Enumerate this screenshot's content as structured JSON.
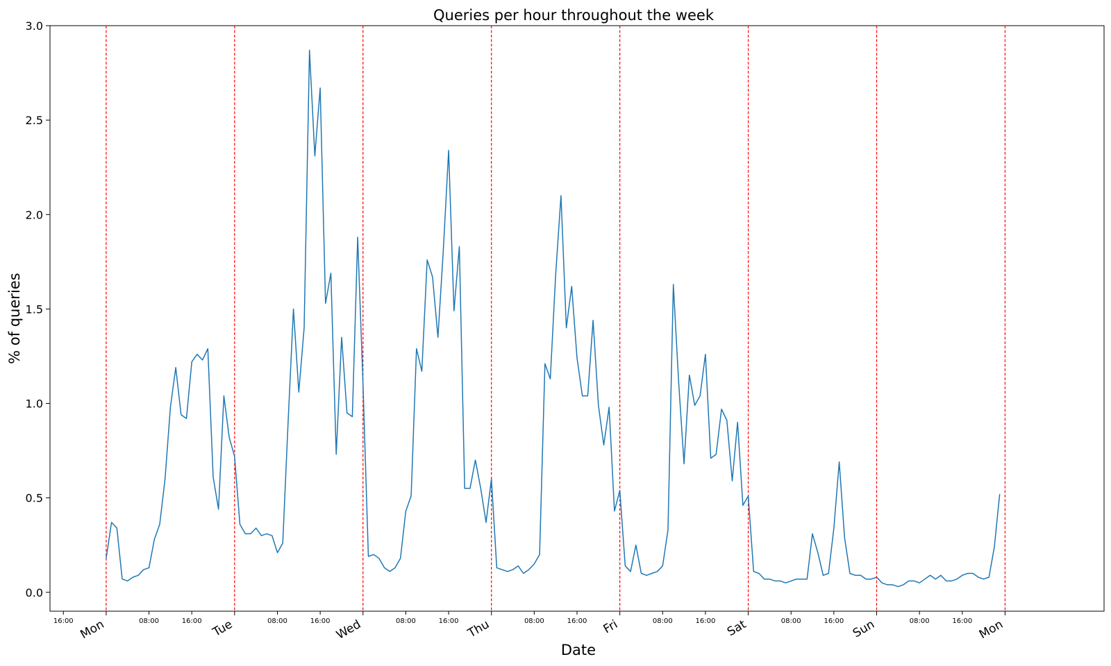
{
  "chart_data": {
    "type": "line",
    "title": "Queries per hour throughout the week",
    "xlabel": "Date",
    "ylabel": "% of queries",
    "ylim": [
      -0.1,
      3.0
    ],
    "y_ticks": [
      0.0,
      0.5,
      1.0,
      1.5,
      2.0,
      2.5,
      3.0
    ],
    "y_tick_labels": [
      "0.0",
      "0.5",
      "1.0",
      "1.5",
      "2.0",
      "2.5",
      "3.0"
    ],
    "x_axis": {
      "unit": "hours since Mon 00:00",
      "range": [
        -10.5,
        186.5
      ],
      "minor_ticks": [
        {
          "x": -8,
          "label": "16:00"
        },
        {
          "x": 8,
          "label": "08:00"
        },
        {
          "x": 16,
          "label": "16:00"
        },
        {
          "x": 32,
          "label": "08:00"
        },
        {
          "x": 40,
          "label": "16:00"
        },
        {
          "x": 56,
          "label": "08:00"
        },
        {
          "x": 64,
          "label": "16:00"
        },
        {
          "x": 80,
          "label": "08:00"
        },
        {
          "x": 88,
          "label": "16:00"
        },
        {
          "x": 104,
          "label": "08:00"
        },
        {
          "x": 112,
          "label": "16:00"
        },
        {
          "x": 128,
          "label": "08:00"
        },
        {
          "x": 136,
          "label": "16:00"
        },
        {
          "x": 152,
          "label": "08:00"
        },
        {
          "x": 160,
          "label": "16:00"
        }
      ],
      "day_ticks": [
        {
          "x": 0,
          "label": "Mon"
        },
        {
          "x": 24,
          "label": "Tue"
        },
        {
          "x": 48,
          "label": "Wed"
        },
        {
          "x": 72,
          "label": "Thu"
        },
        {
          "x": 96,
          "label": "Fri"
        },
        {
          "x": 120,
          "label": "Sat"
        },
        {
          "x": 144,
          "label": "Sun"
        },
        {
          "x": 168,
          "label": "Mon"
        }
      ]
    },
    "day_boundaries": [
      0,
      24,
      48,
      72,
      96,
      120,
      144,
      168
    ],
    "colors": {
      "line": "#1f77b4",
      "day_boundary": "#ff0000"
    },
    "grid": false,
    "series": [
      {
        "values": [
          0.18,
          0.37,
          0.34,
          0.07,
          0.06,
          0.08,
          0.09,
          0.12,
          0.13,
          0.28,
          0.36,
          0.6,
          0.98,
          1.19,
          0.94,
          0.92,
          1.22,
          1.26,
          1.23,
          1.29,
          0.61,
          0.44,
          1.04,
          0.82,
          0.72,
          0.36,
          0.31,
          0.31,
          0.34,
          0.3,
          0.31,
          0.3,
          0.21,
          0.26,
          0.9,
          1.5,
          1.06,
          1.4,
          2.87,
          2.31,
          2.67,
          1.53,
          1.69,
          0.73,
          1.35,
          0.95,
          0.93,
          1.88,
          1.1,
          0.19,
          0.2,
          0.18,
          0.13,
          0.11,
          0.13,
          0.18,
          0.43,
          0.51,
          1.29,
          1.17,
          1.76,
          1.67,
          1.35,
          1.81,
          2.34,
          1.49,
          1.83,
          0.55,
          0.55,
          0.7,
          0.55,
          0.37,
          0.6,
          0.13,
          0.12,
          0.11,
          0.12,
          0.14,
          0.1,
          0.12,
          0.15,
          0.2,
          1.21,
          1.13,
          1.68,
          2.1,
          1.4,
          1.62,
          1.24,
          1.04,
          1.04,
          1.44,
          0.99,
          0.78,
          0.98,
          0.43,
          0.54,
          0.14,
          0.11,
          0.25,
          0.1,
          0.09,
          0.1,
          0.11,
          0.14,
          0.33,
          1.63,
          1.11,
          0.68,
          1.15,
          0.99,
          1.04,
          1.26,
          0.71,
          0.73,
          0.97,
          0.91,
          0.59,
          0.9,
          0.46,
          0.51,
          0.11,
          0.1,
          0.07,
          0.07,
          0.06,
          0.06,
          0.05,
          0.06,
          0.07,
          0.07,
          0.07,
          0.31,
          0.21,
          0.09,
          0.1,
          0.34,
          0.69,
          0.29,
          0.1,
          0.09,
          0.09,
          0.07,
          0.07,
          0.08,
          0.05,
          0.04,
          0.04,
          0.03,
          0.04,
          0.06,
          0.06,
          0.05,
          0.07,
          0.09,
          0.07,
          0.09,
          0.06,
          0.06,
          0.07,
          0.09,
          0.1,
          0.1,
          0.08,
          0.07,
          0.08,
          0.24,
          0.52
        ]
      }
    ]
  }
}
